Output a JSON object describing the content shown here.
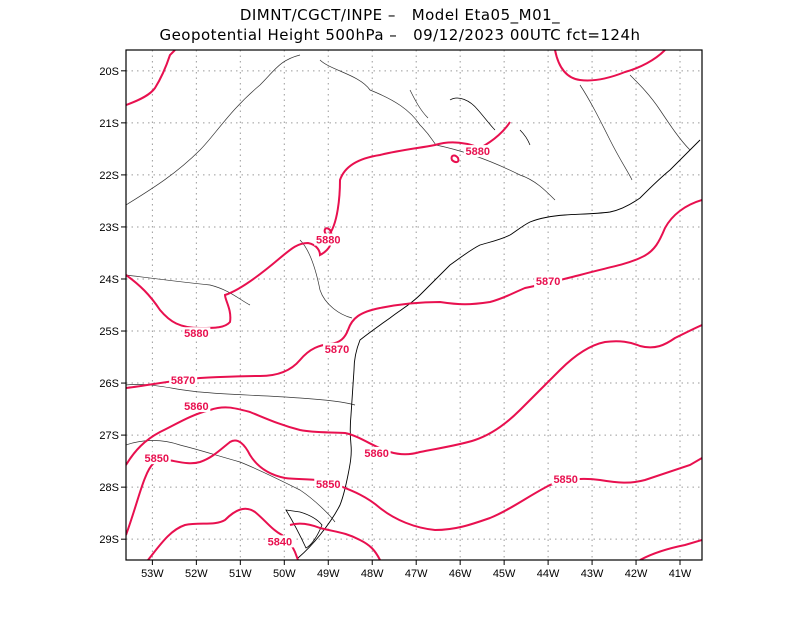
{
  "title": {
    "line1": "DIMNT/CGCT/INPE –   Model Eta05_M01_",
    "line2": "Geopotential Height 500hPa –   09/12/2023 00UTC fct=124h"
  },
  "colors": {
    "contour": "#e8104f",
    "coast": "#000000",
    "grid": "#9a9a9a"
  },
  "axes": {
    "lon_ticks": [
      "53W",
      "52W",
      "51W",
      "50W",
      "49W",
      "48W",
      "47W",
      "46W",
      "45W",
      "44W",
      "43W",
      "42W",
      "41W"
    ],
    "lat_ticks": [
      "20S",
      "21S",
      "22S",
      "23S",
      "24S",
      "25S",
      "26S",
      "27S",
      "28S",
      "29S"
    ],
    "lon_range": [
      -53.6,
      -40.5
    ],
    "lat_range": [
      -29.4,
      -19.6
    ],
    "grid": true
  },
  "contour_labels": [
    {
      "text": "5880",
      "lon": -45.6,
      "lat": -21.6
    },
    {
      "text": "5880",
      "lon": -49.0,
      "lat": -23.3
    },
    {
      "text": "5880",
      "lon": -52.0,
      "lat": -25.1
    },
    {
      "text": "5870",
      "lon": -44.0,
      "lat": -24.1
    },
    {
      "text": "5870",
      "lon": -48.8,
      "lat": -25.4
    },
    {
      "text": "5870",
      "lon": -52.3,
      "lat": -26.0
    },
    {
      "text": "5860",
      "lon": -52.0,
      "lat": -26.5
    },
    {
      "text": "5860",
      "lon": -47.9,
      "lat": -27.4
    },
    {
      "text": "5850",
      "lon": -52.9,
      "lat": -27.5
    },
    {
      "text": "5850",
      "lon": -49.0,
      "lat": -28.0
    },
    {
      "text": "5850",
      "lon": -43.6,
      "lat": -27.9
    },
    {
      "text": "5840",
      "lon": -50.1,
      "lat": -29.1
    }
  ]
}
